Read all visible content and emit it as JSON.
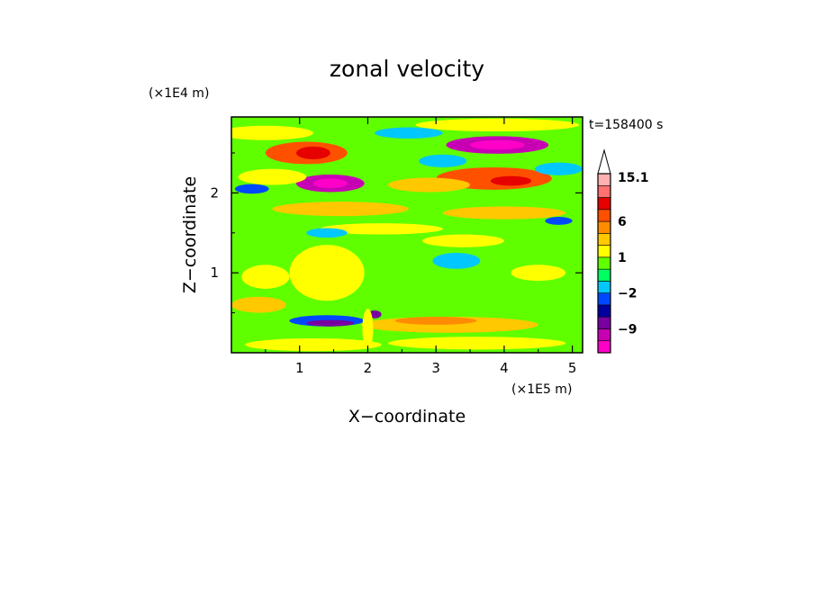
{
  "chart_data": {
    "type": "heatmap",
    "title": "zonal velocity",
    "xlabel": "X−coordinate",
    "ylabel": "Z−coordinate",
    "x_unit": "(×1E5 m)",
    "y_unit": "(×1E4 m)",
    "timestamp": "t=158400 s",
    "xlim": [
      0,
      5.15
    ],
    "ylim": [
      0,
      2.95
    ],
    "x_ticks": [
      1,
      2,
      3,
      4,
      5
    ],
    "x_tick_labels": [
      "1",
      "2",
      "3",
      "4",
      "5"
    ],
    "y_ticks": [
      1,
      2
    ],
    "y_tick_labels": [
      "1",
      "2"
    ],
    "background_level": 0,
    "colorbar": {
      "levels": [
        -15,
        -12,
        -9,
        -6,
        -4,
        -2,
        -1,
        0,
        1,
        2,
        4,
        6,
        9,
        12,
        15.1
      ],
      "colors": [
        "#ff00c8",
        "#c800b4",
        "#7800a0",
        "#0000a0",
        "#0048ff",
        "#00c8ff",
        "#00ff60",
        "#60ff00",
        "#ffff00",
        "#ffc800",
        "#ff8c00",
        "#ff5000",
        "#e60000",
        "#ff7070",
        "#ffb0b0"
      ],
      "tick_labels": [
        "15.1",
        "6",
        "1",
        "−2",
        "−9"
      ],
      "tick_values": [
        15.1,
        6,
        1,
        -2,
        -9
      ],
      "extend": "max"
    },
    "features": [
      {
        "x": 1.1,
        "z": 2.5,
        "rx": 0.6,
        "rz": 0.14,
        "v": 8
      },
      {
        "x": 1.2,
        "z": 2.5,
        "rx": 0.25,
        "rz": 0.08,
        "v": 10
      },
      {
        "x": 1.45,
        "z": 2.12,
        "rx": 0.5,
        "rz": 0.11,
        "v": -10
      },
      {
        "x": 1.45,
        "z": 2.12,
        "rx": 0.25,
        "rz": 0.06,
        "v": -14
      },
      {
        "x": 3.9,
        "z": 2.6,
        "rx": 0.75,
        "rz": 0.11,
        "v": -10
      },
      {
        "x": 3.9,
        "z": 2.6,
        "rx": 0.4,
        "rz": 0.06,
        "v": -14
      },
      {
        "x": 3.85,
        "z": 2.18,
        "rx": 0.85,
        "rz": 0.14,
        "v": 7
      },
      {
        "x": 4.1,
        "z": 2.15,
        "rx": 0.3,
        "rz": 0.06,
        "v": 10
      },
      {
        "x": 0.5,
        "z": 2.75,
        "rx": 0.7,
        "rz": 0.09,
        "v": 1.5
      },
      {
        "x": 3.9,
        "z": 2.85,
        "rx": 1.2,
        "rz": 0.08,
        "v": 1.5
      },
      {
        "x": 0.6,
        "z": 2.2,
        "rx": 0.5,
        "rz": 0.1,
        "v": 1.5
      },
      {
        "x": 2.9,
        "z": 2.1,
        "rx": 0.6,
        "rz": 0.09,
        "v": 2.5
      },
      {
        "x": 0.3,
        "z": 2.05,
        "rx": 0.25,
        "rz": 0.06,
        "v": -3
      },
      {
        "x": 3.1,
        "z": 2.4,
        "rx": 0.35,
        "rz": 0.08,
        "v": -1.5
      },
      {
        "x": 2.6,
        "z": 2.75,
        "rx": 0.5,
        "rz": 0.07,
        "v": -1.5
      },
      {
        "x": 4.8,
        "z": 2.3,
        "rx": 0.35,
        "rz": 0.08,
        "v": -1.5
      },
      {
        "x": 1.6,
        "z": 1.8,
        "rx": 1.0,
        "rz": 0.09,
        "v": 2.5
      },
      {
        "x": 4.0,
        "z": 1.75,
        "rx": 0.9,
        "rz": 0.08,
        "v": 2.5
      },
      {
        "x": 4.8,
        "z": 1.65,
        "rx": 0.2,
        "rz": 0.05,
        "v": -3
      },
      {
        "x": 2.2,
        "z": 1.55,
        "rx": 0.9,
        "rz": 0.07,
        "v": 1.5
      },
      {
        "x": 3.4,
        "z": 1.4,
        "rx": 0.6,
        "rz": 0.08,
        "v": 1.5
      },
      {
        "x": 1.4,
        "z": 1.5,
        "rx": 0.3,
        "rz": 0.06,
        "v": -1.5
      },
      {
        "x": 3.3,
        "z": 1.15,
        "rx": 0.35,
        "rz": 0.1,
        "v": -1.5
      },
      {
        "x": 1.4,
        "z": 1.0,
        "rx": 0.55,
        "rz": 0.35,
        "v": 1.5
      },
      {
        "x": 0.5,
        "z": 0.95,
        "rx": 0.35,
        "rz": 0.15,
        "v": 1.5
      },
      {
        "x": 4.5,
        "z": 1.0,
        "rx": 0.4,
        "rz": 0.1,
        "v": 1.5
      },
      {
        "x": 0.4,
        "z": 0.6,
        "rx": 0.4,
        "rz": 0.1,
        "v": 2.5
      },
      {
        "x": 1.4,
        "z": 0.4,
        "rx": 0.55,
        "rz": 0.07,
        "v": -3
      },
      {
        "x": 1.45,
        "z": 0.37,
        "rx": 0.35,
        "rz": 0.04,
        "v": -7
      },
      {
        "x": 2.1,
        "z": 0.48,
        "rx": 0.1,
        "rz": 0.05,
        "v": -7
      },
      {
        "x": 3.2,
        "z": 0.35,
        "rx": 1.3,
        "rz": 0.1,
        "v": 2.5
      },
      {
        "x": 3.0,
        "z": 0.4,
        "rx": 0.6,
        "rz": 0.05,
        "v": 4.5
      },
      {
        "x": 1.2,
        "z": 0.1,
        "rx": 1.0,
        "rz": 0.08,
        "v": 1.5
      },
      {
        "x": 3.6,
        "z": 0.12,
        "rx": 1.3,
        "rz": 0.08,
        "v": 1.5
      },
      {
        "x": 2.0,
        "z": 0.3,
        "rx": 0.08,
        "rz": 0.25,
        "v": 1.5
      }
    ]
  }
}
